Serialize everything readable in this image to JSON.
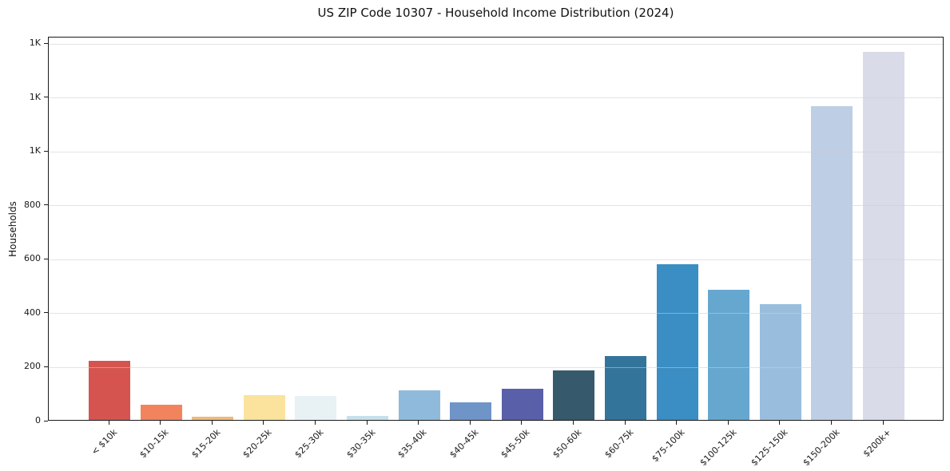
{
  "chart_data": {
    "type": "bar",
    "title": "US ZIP Code 10307 - Household Income Distribution (2024)",
    "xlabel": "",
    "ylabel": "Households",
    "categories": [
      "< $10k",
      "$10-15k",
      "$15-20k",
      "$20-25k",
      "$25-30k",
      "$30-35k",
      "$35-40k",
      "$40-45k",
      "$45-50k",
      "$50-60k",
      "$60-75k",
      "$75-100k",
      "$100-125k",
      "$125-150k",
      "$150-200k",
      "$200k+"
    ],
    "values": [
      220,
      55,
      12,
      92,
      88,
      15,
      110,
      65,
      117,
      185,
      236,
      577,
      483,
      431,
      1163,
      1366
    ],
    "bar_colors": [
      "#d6544f",
      "#f2845d",
      "#f0ba7c",
      "#fbe39d",
      "#e8f2f5",
      "#c6e1ec",
      "#8fbadc",
      "#6e94c8",
      "#5a5fa9",
      "#36596c",
      "#33749a",
      "#3a8ec3",
      "#65a7cf",
      "#99bedd",
      "#bdcee5",
      "#d9dbe8"
    ],
    "ylim": [
      0,
      1425
    ],
    "yticks": [
      0,
      200,
      400,
      600,
      800,
      1000,
      1200,
      1400
    ],
    "ytick_labels": [
      "0",
      "200",
      "400",
      "600",
      "800",
      "1K",
      "1K",
      "1K"
    ],
    "x_tick_rotation": 45,
    "grid": "horizontal",
    "legend": "none",
    "frame": "full-box",
    "frame_color": "#1a1a1a",
    "background_color": "#ffffff"
  }
}
